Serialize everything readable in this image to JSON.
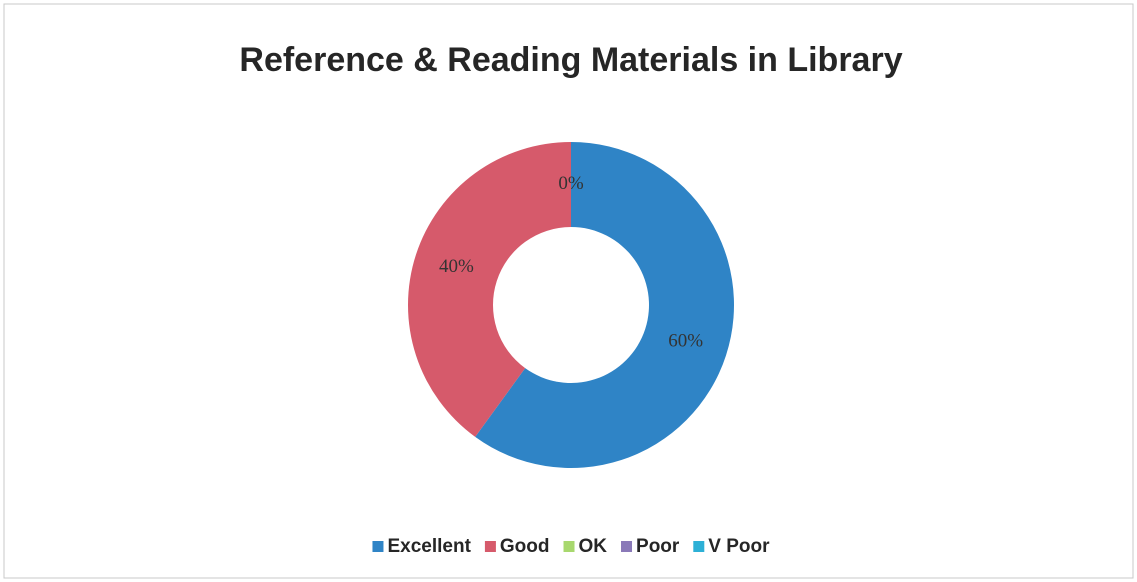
{
  "chart_data": {
    "type": "donut",
    "title": "Reference & Reading Materials in Library",
    "categories": [
      "Excellent",
      "Good",
      "OK",
      "Poor",
      "V Poor"
    ],
    "values": [
      60,
      40,
      0,
      0,
      0
    ],
    "value_labels": [
      "60%",
      "40%",
      "0%",
      null,
      null
    ],
    "colors": [
      "#2f84c6",
      "#d65a6b",
      "#a8d86e",
      "#8a79b8",
      "#2db0d6"
    ],
    "legend": "bottom"
  }
}
